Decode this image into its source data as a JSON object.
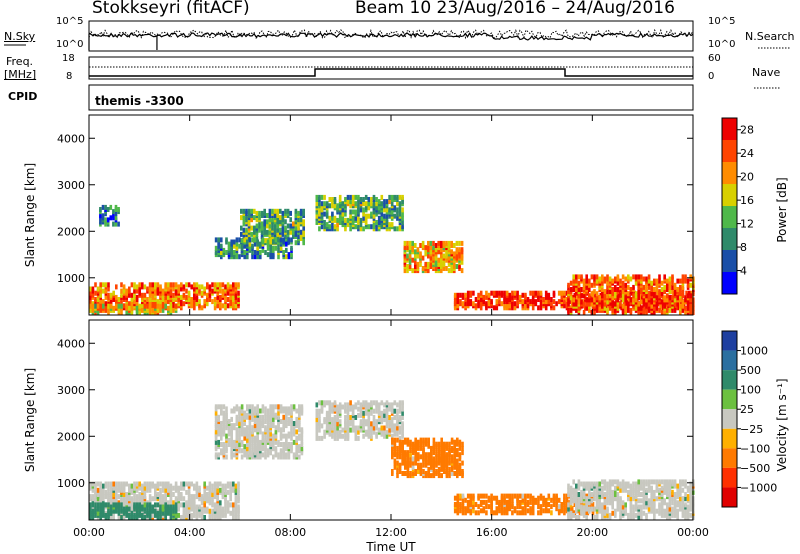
{
  "header": {
    "station": "Stokkseyri (fitACF)",
    "beam_date": "Beam 10  23/Aug/2016 – 24/Aug/2016"
  },
  "noise_panel": {
    "left_label": "N.Sky",
    "right_label": "N.Search",
    "left_ticks": [
      "10^5",
      "10^0"
    ],
    "right_ticks": [
      "10^5",
      "10^0"
    ]
  },
  "freq_panel": {
    "left_label_1": "Freq.",
    "left_label_2": "[MHz]",
    "right_label": "Nave",
    "left_ticks": [
      "18",
      "8"
    ],
    "right_ticks": [
      "60",
      "0"
    ]
  },
  "cpid": {
    "label": "CPID",
    "value": "themis -3300"
  },
  "colors": {
    "power_scale": [
      "#0000ff",
      "#1a4fa8",
      "#2f8a6a",
      "#4fb84a",
      "#d8d000",
      "#ff8c00",
      "#ff4400",
      "#ee0000"
    ],
    "velocity_scale": [
      "#1e3fa0",
      "#2a6fa0",
      "#2f8a6a",
      "#6cc040",
      "#c8c8c0",
      "#ffb000",
      "#ff7a00",
      "#ff3000",
      "#e00000"
    ]
  },
  "chart_data": [
    {
      "type": "heatmap",
      "title": "",
      "ylabel": "Slant Range [km]",
      "xlabel": "",
      "xlim": [
        "00:00",
        "00:00"
      ],
      "ylim": [
        200,
        4500
      ],
      "x_tick_labels": [
        "00:00",
        "04:00",
        "08:00",
        "12:00",
        "16:00",
        "20:00",
        "00:00"
      ],
      "y_tick_labels": [
        "1000",
        "2000",
        "3000",
        "4000"
      ],
      "colorbar": {
        "label": "Power [dB]",
        "ticks": [
          "4",
          "8",
          "12",
          "16",
          "20",
          "24",
          "28"
        ],
        "range": [
          0,
          30
        ]
      },
      "echo_regions": [
        {
          "t_start": 0.0,
          "t_end": 5.9,
          "r_min": 300,
          "r_max": 800,
          "power": 22
        },
        {
          "t_start": 0.0,
          "t_end": 3.5,
          "r_min": 200,
          "r_max": 350,
          "power": 18
        },
        {
          "t_start": 0.4,
          "t_end": 1.2,
          "r_min": 2100,
          "r_max": 2500,
          "power": 8
        },
        {
          "t_start": 6.0,
          "t_end": 8.5,
          "r_min": 1700,
          "r_max": 2400,
          "power": 12
        },
        {
          "t_start": 5.0,
          "t_end": 8.0,
          "r_min": 1400,
          "r_max": 1800,
          "power": 10
        },
        {
          "t_start": 9.0,
          "t_end": 12.5,
          "r_min": 2000,
          "r_max": 2700,
          "power": 12
        },
        {
          "t_start": 12.5,
          "t_end": 14.8,
          "r_min": 1100,
          "r_max": 1700,
          "power": 20
        },
        {
          "t_start": 14.5,
          "t_end": 24.0,
          "r_min": 300,
          "r_max": 650,
          "power": 26
        },
        {
          "t_start": 19.0,
          "t_end": 24.0,
          "r_min": 200,
          "r_max": 1000,
          "power": 24
        }
      ]
    },
    {
      "type": "heatmap",
      "title": "",
      "ylabel": "Slant Range [km]",
      "xlabel": "Time UT",
      "xlim": [
        "00:00",
        "00:00"
      ],
      "ylim": [
        200,
        4500
      ],
      "x_tick_labels": [
        "00:00",
        "04:00",
        "08:00",
        "12:00",
        "16:00",
        "20:00",
        "00:00"
      ],
      "y_tick_labels": [
        "1000",
        "2000",
        "3000",
        "4000"
      ],
      "colorbar": {
        "label": "Velocity [m s⁻¹]",
        "ticks": [
          "1000",
          "500",
          "100",
          "25",
          "−25",
          "−100",
          "−500",
          "−1000"
        ]
      },
      "echo_regions": [
        {
          "t_start": 0.0,
          "t_end": 5.9,
          "r_min": 200,
          "r_max": 950,
          "velocity": 0
        },
        {
          "t_start": 0.0,
          "t_end": 3.5,
          "r_min": 200,
          "r_max": 500,
          "velocity": 150
        },
        {
          "t_start": 5.0,
          "t_end": 8.5,
          "r_min": 1500,
          "r_max": 2600,
          "velocity": 0
        },
        {
          "t_start": 9.0,
          "t_end": 12.5,
          "r_min": 1900,
          "r_max": 2700,
          "velocity": 0
        },
        {
          "t_start": 12.0,
          "t_end": 14.8,
          "r_min": 1100,
          "r_max": 1900,
          "velocity": -150
        },
        {
          "t_start": 14.5,
          "t_end": 20.0,
          "r_min": 300,
          "r_max": 700,
          "velocity": -150
        },
        {
          "t_start": 19.0,
          "t_end": 24.0,
          "r_min": 200,
          "r_max": 1000,
          "velocity": 0
        }
      ]
    }
  ]
}
